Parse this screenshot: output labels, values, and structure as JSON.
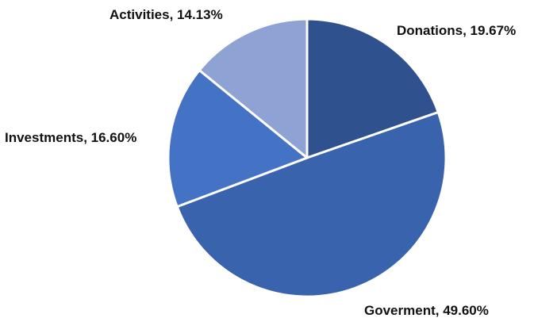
{
  "chart_data": {
    "type": "pie",
    "title": "",
    "slices": [
      {
        "label": "Donations",
        "value": 19.67,
        "display": "Donations, 19.67%",
        "color": "#2f528f"
      },
      {
        "label": "Goverment",
        "value": 49.6,
        "display": "Goverment, 49.60%",
        "color": "#3a63ad"
      },
      {
        "label": "Investments",
        "value": 16.6,
        "display": "Investments, 16.60%",
        "color": "#4472c4"
      },
      {
        "label": "Activities",
        "value": 14.13,
        "display": "Activities, 14.13%",
        "color": "#8fa2d4"
      }
    ],
    "start_angle_deg": 0,
    "direction": "clockwise",
    "legend": "none",
    "data_labels": "outside, category name and percentage",
    "slice_border_color": "#ffffff"
  }
}
